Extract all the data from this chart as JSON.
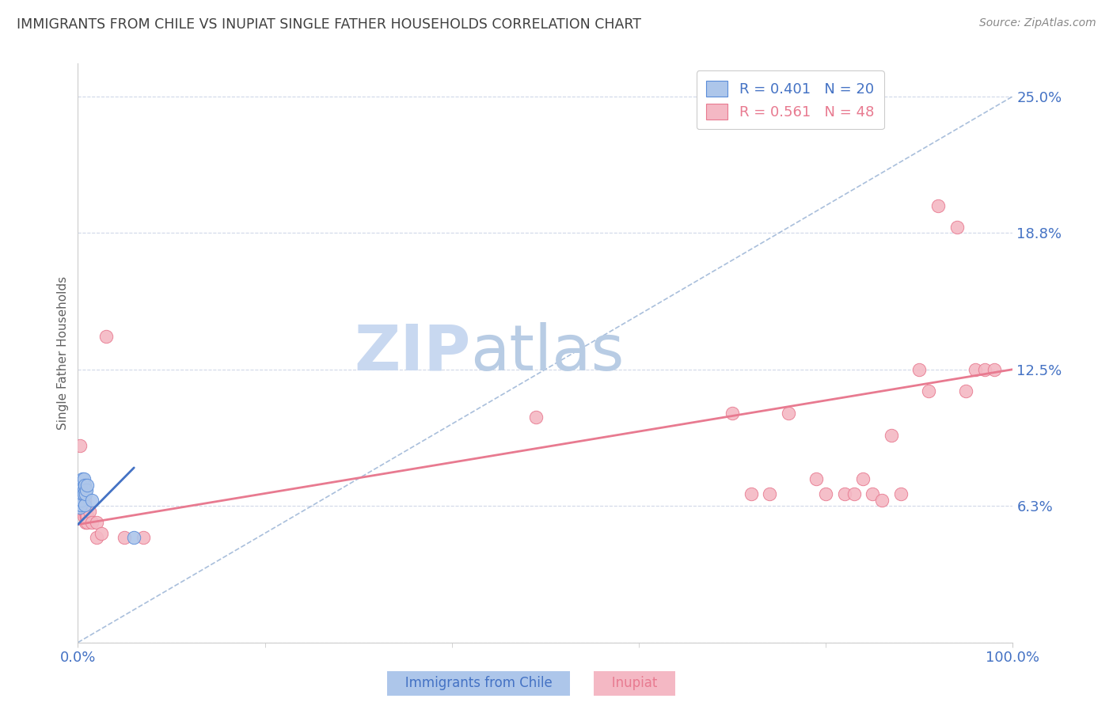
{
  "title": "IMMIGRANTS FROM CHILE VS INUPIAT SINGLE FATHER HOUSEHOLDS CORRELATION CHART",
  "source": "Source: ZipAtlas.com",
  "ylabel_label": "Single Father Households",
  "legend_blue_r": "R = 0.401",
  "legend_blue_n": "N = 20",
  "legend_pink_r": "R = 0.561",
  "legend_pink_n": "N = 48",
  "blue_fill": "#adc6ea",
  "pink_fill": "#f4b8c4",
  "blue_edge": "#5b8dd9",
  "pink_edge": "#e87a90",
  "blue_line_color": "#4472c4",
  "pink_line_color": "#e87a90",
  "dashed_line_color": "#a0b8d8",
  "tick_label_color": "#4472c4",
  "title_color": "#404040",
  "source_color": "#888888",
  "watermark_zip_color": "#c8d8ee",
  "watermark_atlas_color": "#b8cce4",
  "grid_color": "#d0d8e8",
  "blue_points": [
    [
      0.001,
      0.065
    ],
    [
      0.002,
      0.062
    ],
    [
      0.002,
      0.068
    ],
    [
      0.003,
      0.072
    ],
    [
      0.003,
      0.068
    ],
    [
      0.003,
      0.063
    ],
    [
      0.004,
      0.07
    ],
    [
      0.004,
      0.065
    ],
    [
      0.005,
      0.075
    ],
    [
      0.005,
      0.068
    ],
    [
      0.006,
      0.075
    ],
    [
      0.006,
      0.07
    ],
    [
      0.006,
      0.068
    ],
    [
      0.007,
      0.072
    ],
    [
      0.007,
      0.063
    ],
    [
      0.008,
      0.068
    ],
    [
      0.009,
      0.07
    ],
    [
      0.01,
      0.072
    ],
    [
      0.015,
      0.065
    ],
    [
      0.06,
      0.048
    ]
  ],
  "pink_points": [
    [
      0.002,
      0.09
    ],
    [
      0.003,
      0.065
    ],
    [
      0.003,
      0.06
    ],
    [
      0.004,
      0.065
    ],
    [
      0.004,
      0.06
    ],
    [
      0.005,
      0.068
    ],
    [
      0.005,
      0.065
    ],
    [
      0.005,
      0.06
    ],
    [
      0.006,
      0.068
    ],
    [
      0.006,
      0.062
    ],
    [
      0.006,
      0.058
    ],
    [
      0.007,
      0.065
    ],
    [
      0.007,
      0.06
    ],
    [
      0.008,
      0.055
    ],
    [
      0.008,
      0.06
    ],
    [
      0.009,
      0.058
    ],
    [
      0.01,
      0.058
    ],
    [
      0.01,
      0.055
    ],
    [
      0.012,
      0.06
    ],
    [
      0.015,
      0.055
    ],
    [
      0.02,
      0.048
    ],
    [
      0.02,
      0.055
    ],
    [
      0.025,
      0.05
    ],
    [
      0.03,
      0.14
    ],
    [
      0.05,
      0.048
    ],
    [
      0.07,
      0.048
    ],
    [
      0.49,
      0.103
    ],
    [
      0.7,
      0.105
    ],
    [
      0.72,
      0.068
    ],
    [
      0.74,
      0.068
    ],
    [
      0.76,
      0.105
    ],
    [
      0.79,
      0.075
    ],
    [
      0.8,
      0.068
    ],
    [
      0.82,
      0.068
    ],
    [
      0.83,
      0.068
    ],
    [
      0.84,
      0.075
    ],
    [
      0.85,
      0.068
    ],
    [
      0.86,
      0.065
    ],
    [
      0.87,
      0.095
    ],
    [
      0.88,
      0.068
    ],
    [
      0.9,
      0.125
    ],
    [
      0.91,
      0.115
    ],
    [
      0.92,
      0.2
    ],
    [
      0.94,
      0.19
    ],
    [
      0.95,
      0.115
    ],
    [
      0.96,
      0.125
    ],
    [
      0.97,
      0.125
    ],
    [
      0.98,
      0.125
    ]
  ],
  "xlim": [
    0.0,
    1.0
  ],
  "ylim": [
    0.0,
    0.265
  ],
  "y_ticks": [
    0.0,
    0.0625,
    0.125,
    0.1875,
    0.25
  ],
  "y_tick_labels": [
    "",
    "6.3%",
    "12.5%",
    "18.8%",
    "25.0%"
  ],
  "x_ticks": [
    0.0,
    1.0
  ],
  "x_tick_labels": [
    "0.0%",
    "100.0%"
  ],
  "pink_line_x": [
    0.0,
    1.0
  ],
  "pink_line_y": [
    0.054,
    0.125
  ],
  "blue_line_x": [
    0.0,
    0.06
  ],
  "blue_line_y": [
    0.054,
    0.08
  ],
  "diag_line_x": [
    0.0,
    1.0
  ],
  "diag_line_y": [
    0.0,
    0.25
  ],
  "figsize": [
    14.06,
    8.92
  ],
  "dpi": 100
}
